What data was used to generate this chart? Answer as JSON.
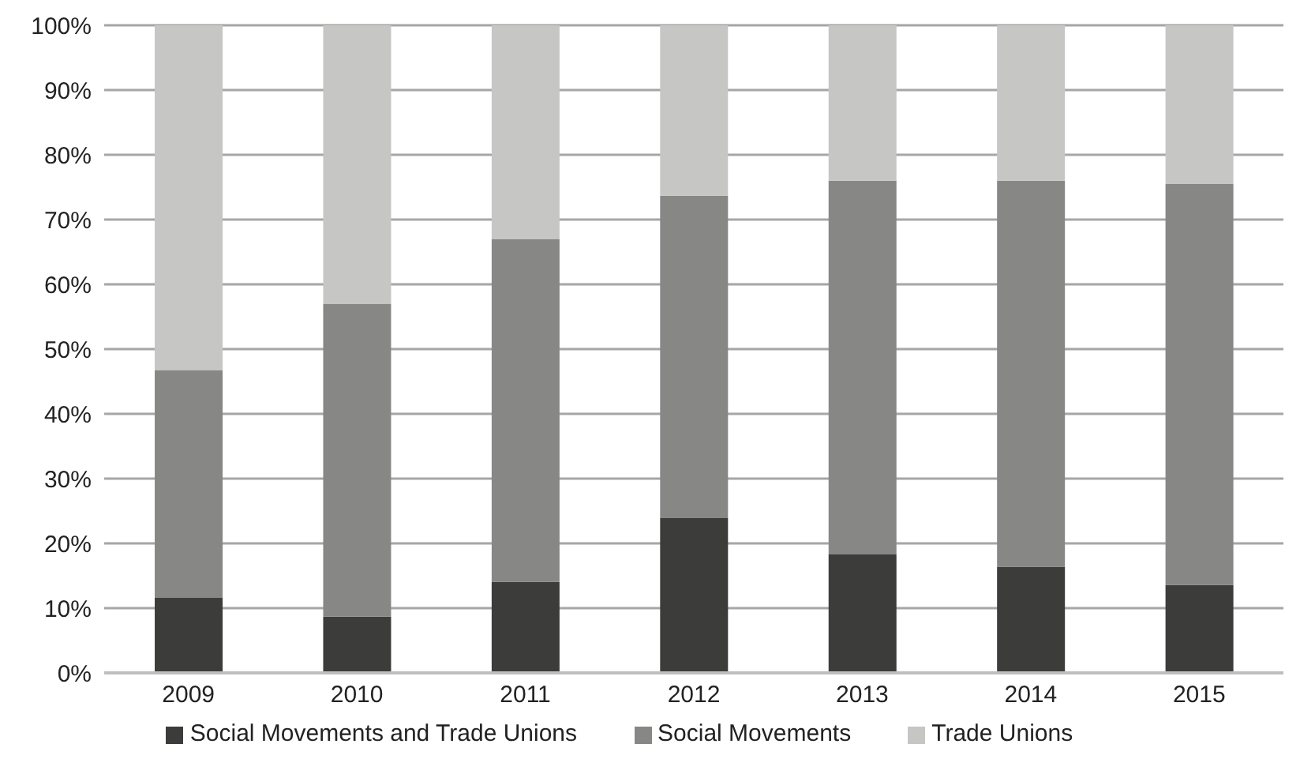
{
  "chart_data": {
    "type": "bar",
    "stacked": true,
    "categories": [
      "2009",
      "2010",
      "2011",
      "2012",
      "2013",
      "2014",
      "2015"
    ],
    "series": [
      {
        "name": "Social Movements and Trade Unions",
        "color": "#3c3c3a",
        "values": [
          11.6,
          8.7,
          14.1,
          23.9,
          18.3,
          16.4,
          13.6
        ]
      },
      {
        "name": "Social Movements",
        "color": "#878786",
        "values": [
          35.1,
          48.3,
          52.9,
          49.8,
          57.7,
          59.6,
          61.9
        ]
      },
      {
        "name": "Trade Unions",
        "color": "#c6c6c5",
        "values": [
          53.3,
          43.0,
          33.0,
          26.3,
          24.0,
          24.0,
          24.5
        ]
      }
    ],
    "ylim": [
      0,
      100
    ],
    "yticks": [
      {
        "value": 0,
        "label": "0%"
      },
      {
        "value": 10,
        "label": "10%"
      },
      {
        "value": 20,
        "label": "20%"
      },
      {
        "value": 30,
        "label": "30%"
      },
      {
        "value": 40,
        "label": "40%"
      },
      {
        "value": 50,
        "label": "50%"
      },
      {
        "value": 60,
        "label": "60%"
      },
      {
        "value": 70,
        "label": "70%"
      },
      {
        "value": 80,
        "label": "80%"
      },
      {
        "value": 90,
        "label": "90%"
      },
      {
        "value": 100,
        "label": "100%"
      }
    ],
    "grid": "y",
    "legend": "bottom"
  }
}
